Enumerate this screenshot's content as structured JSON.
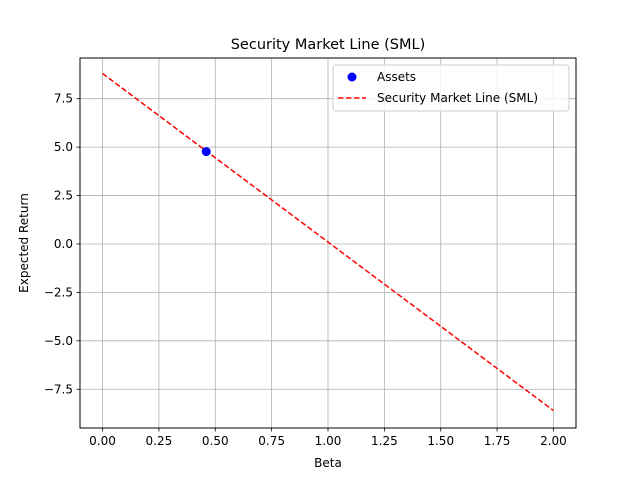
{
  "chart_data": {
    "type": "scatter",
    "title": "Security Market Line (SML)",
    "xlabel": "Beta",
    "ylabel": "Expected Return",
    "xlim": [
      -0.1,
      2.1
    ],
    "ylim": [
      -9.5,
      9.6
    ],
    "xticks": [
      0.0,
      0.25,
      0.5,
      0.75,
      1.0,
      1.25,
      1.5,
      1.75,
      2.0
    ],
    "xtick_labels": [
      "0.00",
      "0.25",
      "0.50",
      "0.75",
      "1.00",
      "1.25",
      "1.50",
      "1.75",
      "2.00"
    ],
    "yticks": [
      -7.5,
      -5.0,
      -2.5,
      0.0,
      2.5,
      5.0,
      7.5
    ],
    "ytick_labels": [
      "−7.5",
      "−5.0",
      "−2.5",
      "0.0",
      "2.5",
      "5.0",
      "7.5"
    ],
    "grid": true,
    "legend_position": "top-right",
    "series": [
      {
        "name": "Assets",
        "kind": "scatter",
        "color": "#0000ff",
        "x": [
          0.46
        ],
        "y": [
          4.77
        ]
      },
      {
        "name": "Security Market Line (SML)",
        "kind": "line",
        "style": "dashed",
        "color": "#ff0000",
        "x": [
          0.0,
          2.0
        ],
        "y": [
          8.8,
          -8.6
        ]
      }
    ]
  }
}
